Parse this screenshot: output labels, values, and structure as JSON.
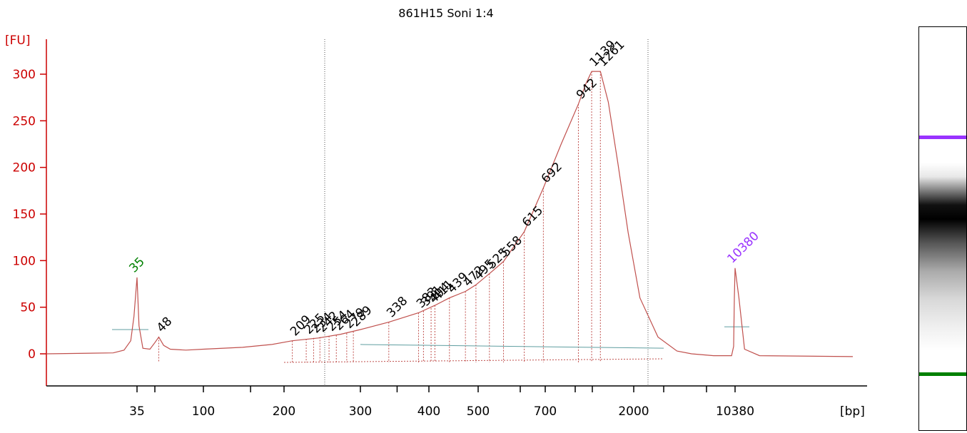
{
  "chart_data": {
    "type": "line",
    "title": "861H15 Soni 1:4",
    "ylabel": "[FU]",
    "xlabel": "[bp]",
    "ylim": [
      -35,
      340
    ],
    "y_ticks": [
      0,
      50,
      100,
      150,
      200,
      250,
      300
    ],
    "x_tick_labels": [
      "35",
      "100",
      "200",
      "300",
      "400",
      "500",
      "700",
      "2000",
      "10380"
    ],
    "colors": {
      "axis": "#cc0000",
      "trace": "#c0504d",
      "baseline": "#5f9ea0",
      "lower_marker": "#008000",
      "upper_marker": "#9933ff"
    },
    "marker_labels": [
      {
        "label": "35",
        "bp": 35,
        "fu": 82,
        "color": "#008000"
      },
      {
        "label": "10380",
        "bp": 10380,
        "fu": 92,
        "color": "#9933ff"
      }
    ],
    "peaks": [
      {
        "bp": 48,
        "fu": 18
      },
      {
        "bp": 209,
        "fu": 14
      },
      {
        "bp": 225,
        "fu": 16
      },
      {
        "bp": 234,
        "fu": 17
      },
      {
        "bp": 242,
        "fu": 18
      },
      {
        "bp": 254,
        "fu": 19
      },
      {
        "bp": 264,
        "fu": 20
      },
      {
        "bp": 279,
        "fu": 22
      },
      {
        "bp": 289,
        "fu": 24
      },
      {
        "bp": 338,
        "fu": 34
      },
      {
        "bp": 383,
        "fu": 44
      },
      {
        "bp": 391,
        "fu": 46
      },
      {
        "bp": 404,
        "fu": 49
      },
      {
        "bp": 411,
        "fu": 52
      },
      {
        "bp": 439,
        "fu": 60
      },
      {
        "bp": 472,
        "fu": 67
      },
      {
        "bp": 495,
        "fu": 74
      },
      {
        "bp": 525,
        "fu": 86
      },
      {
        "bp": 558,
        "fu": 99
      },
      {
        "bp": 615,
        "fu": 131
      },
      {
        "bp": 692,
        "fu": 178
      },
      {
        "bp": 942,
        "fu": 268
      },
      {
        "bp": 1139,
        "fu": 303
      },
      {
        "bp": 1261,
        "fu": 303
      }
    ],
    "trace": [
      {
        "bp": 15,
        "fu": 0
      },
      {
        "bp": 28,
        "fu": 1
      },
      {
        "bp": 31,
        "fu": 4
      },
      {
        "bp": 33,
        "fu": 14
      },
      {
        "bp": 34,
        "fu": 40
      },
      {
        "bp": 35,
        "fu": 82
      },
      {
        "bp": 36,
        "fu": 30
      },
      {
        "bp": 38,
        "fu": 6
      },
      {
        "bp": 42,
        "fu": 5
      },
      {
        "bp": 45,
        "fu": 12
      },
      {
        "bp": 48,
        "fu": 18
      },
      {
        "bp": 52,
        "fu": 9
      },
      {
        "bp": 58,
        "fu": 5
      },
      {
        "bp": 75,
        "fu": 4
      },
      {
        "bp": 100,
        "fu": 5
      },
      {
        "bp": 140,
        "fu": 7
      },
      {
        "bp": 180,
        "fu": 10
      },
      {
        "bp": 209,
        "fu": 14
      },
      {
        "bp": 240,
        "fu": 17
      },
      {
        "bp": 270,
        "fu": 21
      },
      {
        "bp": 300,
        "fu": 26
      },
      {
        "bp": 338,
        "fu": 34
      },
      {
        "bp": 383,
        "fu": 44
      },
      {
        "bp": 411,
        "fu": 52
      },
      {
        "bp": 439,
        "fu": 60
      },
      {
        "bp": 472,
        "fu": 67
      },
      {
        "bp": 495,
        "fu": 74
      },
      {
        "bp": 525,
        "fu": 86
      },
      {
        "bp": 558,
        "fu": 99
      },
      {
        "bp": 615,
        "fu": 131
      },
      {
        "bp": 692,
        "fu": 178
      },
      {
        "bp": 800,
        "fu": 225
      },
      {
        "bp": 942,
        "fu": 268
      },
      {
        "bp": 1050,
        "fu": 290
      },
      {
        "bp": 1139,
        "fu": 303
      },
      {
        "bp": 1261,
        "fu": 303
      },
      {
        "bp": 1400,
        "fu": 270
      },
      {
        "bp": 1600,
        "fu": 205
      },
      {
        "bp": 1850,
        "fu": 130
      },
      {
        "bp": 2100,
        "fu": 60
      },
      {
        "bp": 2400,
        "fu": 18
      },
      {
        "bp": 2800,
        "fu": 3
      },
      {
        "bp": 3500,
        "fu": 0
      },
      {
        "bp": 6000,
        "fu": -2
      },
      {
        "bp": 9500,
        "fu": -2
      },
      {
        "bp": 10000,
        "fu": 8
      },
      {
        "bp": 10200,
        "fu": 60
      },
      {
        "bp": 10380,
        "fu": 92
      },
      {
        "bp": 10550,
        "fu": 60
      },
      {
        "bp": 10800,
        "fu": 5
      },
      {
        "bp": 11500,
        "fu": -2
      },
      {
        "bp": 17000,
        "fu": -3
      }
    ],
    "grid": false,
    "gel_image": {
      "upper_marker_color": "#9933ff",
      "lower_marker_color": "#008000"
    }
  }
}
